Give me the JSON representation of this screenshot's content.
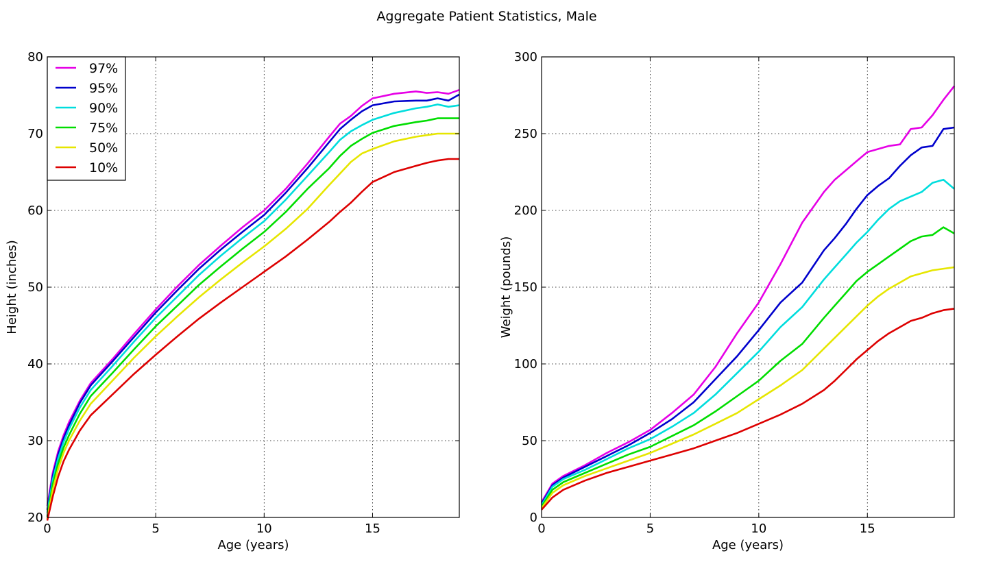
{
  "figure_title": "Aggregate Patient Statistics, Male",
  "chart_data": [
    {
      "type": "line",
      "xlabel": "Age (years)",
      "ylabel": "Height (inches)",
      "xlim": [
        0,
        19
      ],
      "ylim": [
        20,
        80
      ],
      "xticks": [
        0,
        5,
        10,
        15
      ],
      "yticks": [
        20,
        30,
        40,
        50,
        60,
        70,
        80
      ],
      "grid": true,
      "legend": "upper-left",
      "x": [
        0,
        0.25,
        0.5,
        0.75,
        1,
        1.5,
        2,
        3,
        4,
        5,
        6,
        7,
        8,
        9,
        10,
        11,
        12,
        13,
        13.5,
        14,
        14.5,
        15,
        16,
        17,
        17.5,
        18,
        18.5,
        19
      ],
      "series": [
        {
          "name": "97%",
          "color": "#e600e6",
          "values": [
            21.5,
            25.8,
            28.6,
            30.7,
            32.4,
            35.2,
            37.5,
            40.6,
            43.9,
            47.1,
            50.1,
            52.9,
            55.4,
            57.8,
            60.0,
            62.8,
            66.1,
            69.6,
            71.3,
            72.3,
            73.6,
            74.6,
            75.2,
            75.5,
            75.3,
            75.4,
            75.2,
            75.7
          ]
        },
        {
          "name": "95%",
          "color": "#0000cc",
          "values": [
            21.0,
            25.4,
            28.2,
            30.3,
            32.0,
            34.9,
            37.2,
            40.3,
            43.5,
            46.7,
            49.6,
            52.4,
            54.9,
            57.2,
            59.4,
            62.3,
            65.5,
            68.9,
            70.6,
            71.8,
            72.9,
            73.7,
            74.2,
            74.3,
            74.3,
            74.6,
            74.3,
            75.1
          ]
        },
        {
          "name": "90%",
          "color": "#00dddd",
          "values": [
            20.6,
            24.9,
            27.7,
            29.8,
            31.5,
            34.3,
            36.6,
            39.7,
            42.9,
            46.0,
            48.8,
            51.6,
            54.1,
            56.4,
            58.6,
            61.4,
            64.5,
            67.6,
            69.2,
            70.3,
            71.1,
            71.8,
            72.7,
            73.3,
            73.5,
            73.8,
            73.5,
            73.7
          ]
        },
        {
          "name": "75%",
          "color": "#00dd00",
          "values": [
            20.1,
            24.3,
            27.0,
            29.1,
            30.7,
            33.5,
            35.8,
            38.8,
            41.9,
            44.9,
            47.6,
            50.3,
            52.7,
            55.0,
            57.2,
            59.8,
            62.8,
            65.5,
            67.1,
            68.4,
            69.3,
            70.1,
            71.0,
            71.5,
            71.7,
            72.0,
            72.0,
            72.0
          ]
        },
        {
          "name": "50%",
          "color": "#e6e600",
          "values": [
            19.8,
            23.6,
            26.3,
            28.4,
            30.0,
            32.6,
            34.8,
            37.8,
            40.8,
            43.6,
            46.2,
            48.7,
            51.0,
            53.2,
            55.3,
            57.6,
            60.2,
            63.3,
            64.8,
            66.3,
            67.4,
            68.0,
            69.0,
            69.6,
            69.8,
            70.0,
            70.0,
            70.0
          ]
        },
        {
          "name": "10%",
          "color": "#dd0000",
          "values": [
            19.6,
            22.7,
            25.3,
            27.3,
            28.8,
            31.3,
            33.3,
            36.0,
            38.7,
            41.2,
            43.6,
            45.9,
            48.0,
            50.0,
            52.0,
            54.0,
            56.2,
            58.5,
            59.8,
            61.0,
            62.4,
            63.7,
            65.0,
            65.8,
            66.2,
            66.5,
            66.7,
            66.7
          ]
        }
      ]
    },
    {
      "type": "line",
      "xlabel": "Age (years)",
      "ylabel": "Weight (pounds)",
      "xlim": [
        0,
        19
      ],
      "ylim": [
        0,
        300
      ],
      "xticks": [
        0,
        5,
        10,
        15
      ],
      "yticks": [
        0,
        50,
        100,
        150,
        200,
        250,
        300
      ],
      "grid": true,
      "x": [
        0,
        0.5,
        1,
        2,
        3,
        4,
        5,
        6,
        7,
        8,
        9,
        10,
        11,
        12,
        13,
        13.5,
        14,
        14.5,
        15,
        15.5,
        16,
        16.5,
        17,
        17.5,
        18,
        18.5,
        19
      ],
      "series": [
        {
          "name": "97%",
          "color": "#e600e6",
          "values": [
            10,
            22,
            27,
            34,
            42,
            49,
            57,
            68,
            80,
            98,
            120,
            140,
            165,
            192,
            212,
            220,
            226,
            232,
            238,
            240,
            242,
            243,
            253,
            254,
            262,
            272,
            281
          ]
        },
        {
          "name": "95%",
          "color": "#0000cc",
          "values": [
            9,
            21,
            26,
            33,
            40,
            47,
            55,
            64,
            75,
            90,
            105,
            122,
            140,
            153,
            174,
            182,
            191,
            201,
            210,
            216,
            221,
            229,
            236,
            241,
            242,
            253,
            254
          ]
        },
        {
          "name": "90%",
          "color": "#00dddd",
          "values": [
            8,
            20,
            25,
            31,
            38,
            45,
            51,
            59,
            68,
            80,
            94,
            108,
            124,
            137,
            155,
            163,
            171,
            179,
            186,
            194,
            201,
            206,
            209,
            212,
            218,
            220,
            214
          ]
        },
        {
          "name": "75%",
          "color": "#00dd00",
          "values": [
            7,
            18,
            23,
            29,
            35,
            41,
            46,
            53,
            60,
            69,
            79,
            89,
            102,
            113,
            130,
            138,
            146,
            154,
            160,
            165,
            170,
            175,
            180,
            183,
            184,
            189,
            185
          ]
        },
        {
          "name": "50%",
          "color": "#e6e600",
          "values": [
            6,
            16,
            21,
            27,
            32,
            37,
            42,
            48,
            54,
            61,
            68,
            77,
            86,
            96,
            110,
            117,
            124,
            131,
            138,
            144,
            149,
            153,
            157,
            159,
            161,
            162,
            163
          ]
        },
        {
          "name": "10%",
          "color": "#dd0000",
          "values": [
            5,
            13,
            18,
            24,
            29,
            33,
            37,
            41,
            45,
            50,
            55,
            61,
            67,
            74,
            83,
            89,
            96,
            103,
            109,
            115,
            120,
            124,
            128,
            130,
            133,
            135,
            136
          ]
        }
      ]
    }
  ]
}
